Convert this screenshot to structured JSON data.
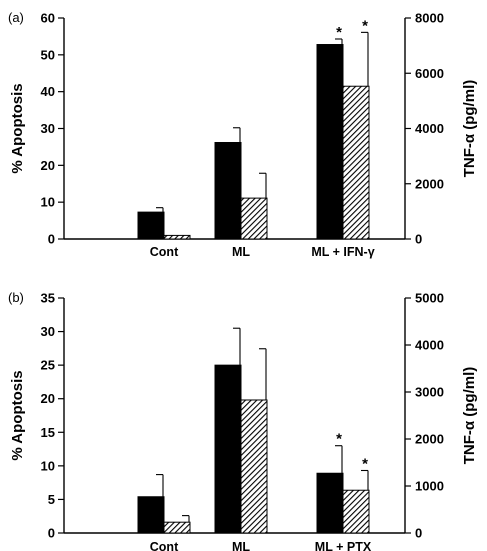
{
  "chart_data": [
    {
      "type": "bar",
      "panel_label": "(a)",
      "categories": [
        "",
        "Cont",
        "ML",
        "ML + IFN-γ"
      ],
      "ylabel": "% Apoptosis",
      "ylim": [
        0,
        60
      ],
      "yticks": [
        0,
        10,
        20,
        30,
        40,
        50,
        60
      ],
      "y2label": "TNF-α (pg/ml)",
      "y2lim": [
        0,
        8000
      ],
      "y2ticks": [
        0,
        2000,
        4000,
        6000,
        8000
      ],
      "series": [
        {
          "axis": "left",
          "style": "solid",
          "values": [
            null,
            7.3,
            26.2,
            52.8
          ],
          "errors": [
            null,
            1.2,
            4.0,
            1.5
          ],
          "significance": [
            "",
            "",
            "",
            "*"
          ]
        },
        {
          "axis": "right",
          "style": "hatched",
          "values": [
            null,
            130,
            1480,
            5530
          ],
          "errors": [
            null,
            0,
            900,
            1950
          ],
          "significance": [
            "",
            "",
            "",
            "*"
          ]
        }
      ]
    },
    {
      "type": "bar",
      "panel_label": "(b)",
      "categories": [
        "Cont",
        "ML",
        "ML + PTX"
      ],
      "ylabel": "% Apoptosis",
      "ylim": [
        0,
        35
      ],
      "yticks": [
        0,
        5,
        10,
        15,
        20,
        25,
        30,
        35
      ],
      "y2label": "TNF-α (pg/ml)",
      "y2lim": [
        0,
        5000
      ],
      "y2ticks": [
        0,
        1000,
        2000,
        3000,
        4000,
        5000
      ],
      "series": [
        {
          "axis": "left",
          "style": "solid",
          "values": [
            5.4,
            25.0,
            8.9
          ],
          "errors": [
            3.3,
            5.5,
            4.1
          ],
          "significance": [
            "",
            "",
            "*"
          ]
        },
        {
          "axis": "right",
          "style": "hatched",
          "values": [
            230,
            2830,
            910
          ],
          "errors": [
            140,
            1090,
            420
          ],
          "significance": [
            "",
            "",
            "*"
          ]
        }
      ]
    }
  ]
}
